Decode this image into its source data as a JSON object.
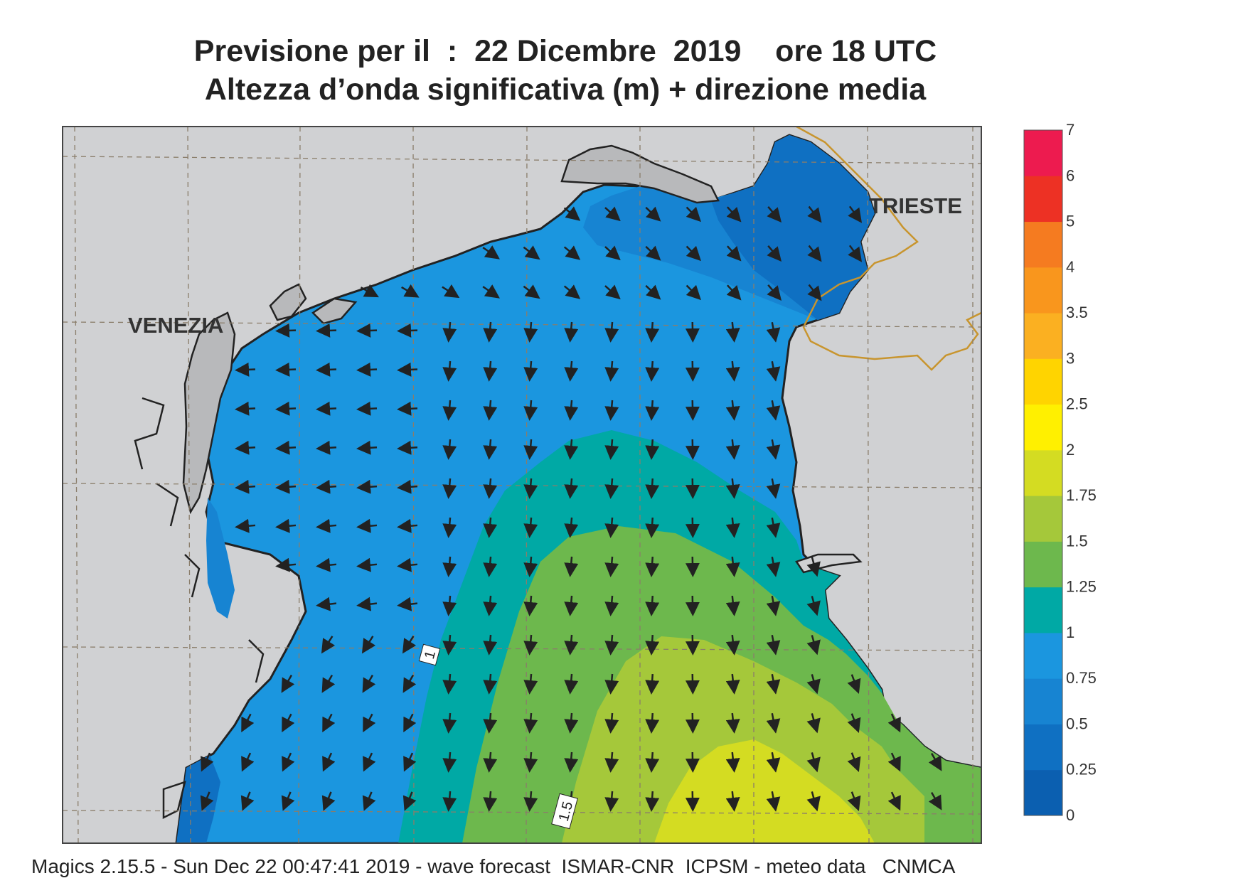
{
  "title": {
    "line1": "Previsione per il  :  22 Dicembre  2019    ore 18 UTC",
    "line2": "Altezza d’onda significativa (m) + direzione media"
  },
  "cities": {
    "venezia": "VENEZIA",
    "trieste": "TRIESTE"
  },
  "contour_labels": [
    "1",
    "1.5"
  ],
  "colorbar": {
    "labels": [
      "0",
      "0.25",
      "0.5",
      "0.75",
      "1",
      "1.25",
      "1.5",
      "1.75",
      "2",
      "2.5",
      "3",
      "3.5",
      "4",
      "5",
      "6",
      "7"
    ],
    "colors": [
      "#0b5fb0",
      "#0f70c2",
      "#1784d2",
      "#1b96df",
      "#00a9a5",
      "#6db84d",
      "#a5c83a",
      "#d4dc22",
      "#fff000",
      "#ffd400",
      "#fbb021",
      "#f9961d",
      "#f57b20",
      "#ed3124",
      "#ed1b4f"
    ]
  },
  "legend_colors": {
    "land": "#d0d1d3",
    "lagoon": "#b8b9bb",
    "border": "#c8952e"
  },
  "footer": "Magics 2.15.5 - Sun Dec 22 00:47:41 2019 - wave forecast  ISMAR-CNR  ICPSM - meteo data   CNMCA"
}
